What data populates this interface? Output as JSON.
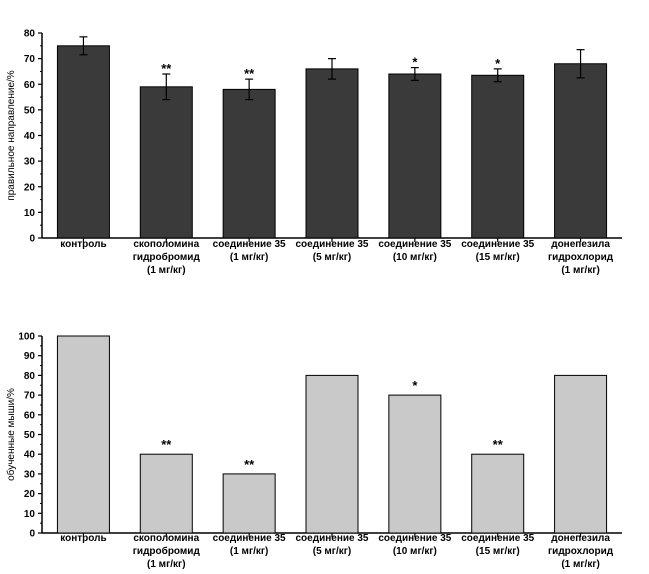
{
  "chart_data": [
    {
      "type": "bar",
      "ylabel": "правильное направление/%",
      "ylim": [
        0,
        80
      ],
      "yticks": [
        0,
        10,
        20,
        30,
        40,
        50,
        60,
        70,
        80
      ],
      "bar_color": "#3a3a3a",
      "categories": [
        [
          "контроль"
        ],
        [
          "скополомина",
          "гидробромид",
          "(1 мг/кг)"
        ],
        [
          "соединение 35",
          "(1 мг/кг)"
        ],
        [
          "соединение 35",
          "(5 мг/кг)"
        ],
        [
          "соединение 35",
          "(10 мг/кг)"
        ],
        [
          "соединение 35",
          "(15 мг/кг)"
        ],
        [
          "донепезила",
          "гидрохлорид",
          "(1 мг/кг)"
        ]
      ],
      "values": [
        75,
        59,
        58,
        66,
        64,
        63.5,
        68
      ],
      "errors": [
        3.5,
        5,
        4,
        4,
        2.5,
        2.5,
        5.5
      ],
      "significance": [
        "",
        "**",
        "**",
        "",
        "*",
        "*",
        ""
      ],
      "grid": false
    },
    {
      "type": "bar",
      "ylabel": "обученные мыши/%",
      "ylim": [
        0,
        100
      ],
      "yticks": [
        0,
        10,
        20,
        30,
        40,
        50,
        60,
        70,
        80,
        90,
        100
      ],
      "bar_color": "#c9c9c9",
      "categories": [
        [
          "контроль"
        ],
        [
          "скополомина",
          "гидробромид",
          "(1 мг/кг)"
        ],
        [
          "соединение 35",
          "(1 мг/кг)"
        ],
        [
          "соединение 35",
          "(5 мг/кг)"
        ],
        [
          "соединение 35",
          "(10 мг/кг)"
        ],
        [
          "соединение 35",
          "(15 мг/кг)"
        ],
        [
          "донепезила",
          "гидрохлорид",
          "(1 мг/кг)"
        ]
      ],
      "values": [
        100,
        40,
        30,
        80,
        70,
        40,
        80
      ],
      "significance": [
        "",
        "**",
        "**",
        "",
        "*",
        "**",
        ""
      ],
      "grid": false
    }
  ]
}
